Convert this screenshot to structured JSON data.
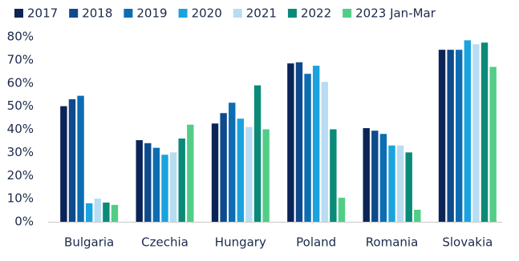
{
  "chart_data": {
    "type": "bar",
    "categories": [
      "Bulgaria",
      "Czechia",
      "Hungary",
      "Poland",
      "Romania",
      "Slovakia"
    ],
    "series": [
      {
        "name": "2017",
        "color": "#0b2457",
        "values": [
          50,
          35.3,
          42.5,
          68.5,
          40.5,
          74.4
        ]
      },
      {
        "name": "2018",
        "color": "#0e4a8c",
        "values": [
          53,
          34,
          47,
          69,
          39.4,
          74.4
        ]
      },
      {
        "name": "2019",
        "color": "#0d6db3",
        "values": [
          54.5,
          32,
          51.5,
          64,
          38,
          74.4
        ]
      },
      {
        "name": "2020",
        "color": "#1aa3df",
        "values": [
          8,
          29,
          44.6,
          67.5,
          33,
          78.5
        ]
      },
      {
        "name": "2021",
        "color": "#b8dcf2",
        "values": [
          10,
          30,
          41,
          60.5,
          33,
          76.8
        ]
      },
      {
        "name": "2022",
        "color": "#0b8a78",
        "values": [
          8.3,
          36,
          59,
          40,
          30,
          77.5
        ]
      },
      {
        "name": "2023 Jan-Mar",
        "color": "#52cd86",
        "values": [
          7.3,
          42,
          40,
          10.4,
          5.2,
          67
        ]
      }
    ],
    "ylim": [
      0,
      80
    ],
    "yticks": [
      {
        "value": 0,
        "label": "0%"
      },
      {
        "value": 10,
        "label": "10%"
      },
      {
        "value": 20,
        "label": "20%"
      },
      {
        "value": 30,
        "label": "30%"
      },
      {
        "value": 40,
        "label": "40%"
      },
      {
        "value": 50,
        "label": "50%"
      },
      {
        "value": 60,
        "label": "60%"
      },
      {
        "value": 70,
        "label": "70%"
      },
      {
        "value": 80,
        "label": "80%"
      }
    ],
    "grid": false
  }
}
